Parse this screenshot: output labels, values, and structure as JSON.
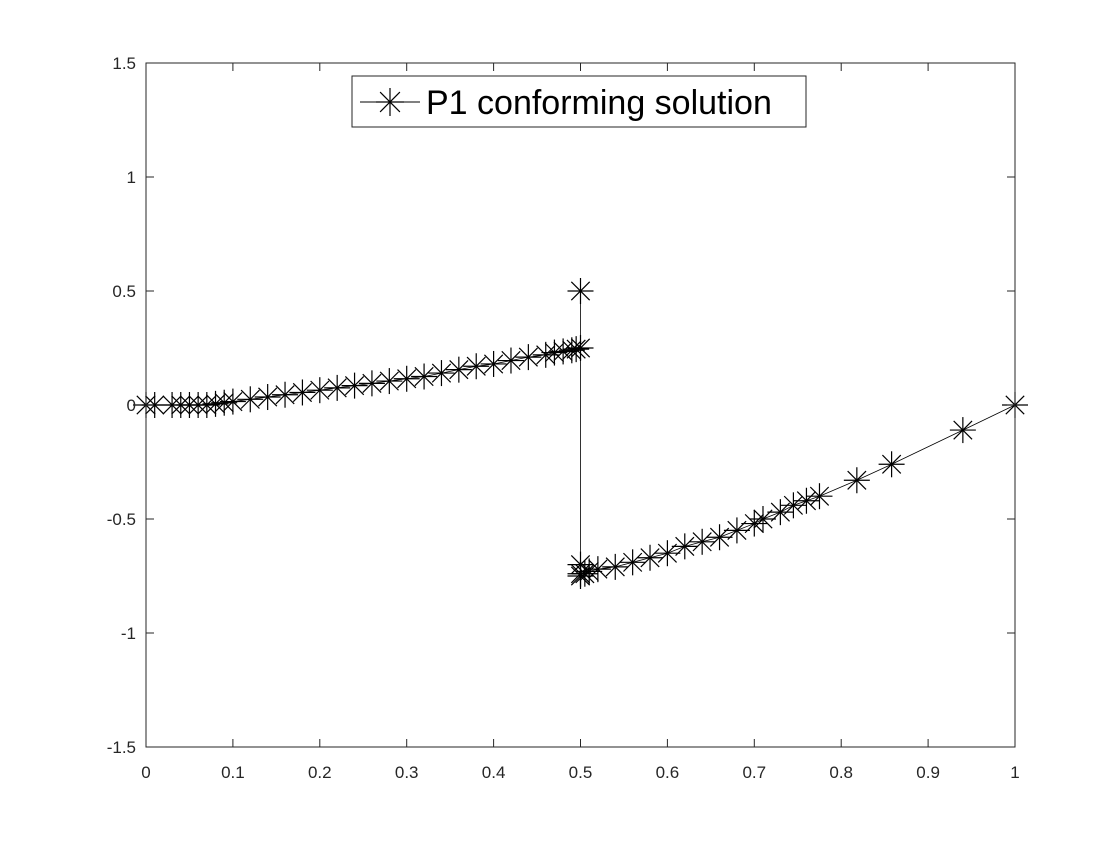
{
  "chart_data": {
    "type": "line",
    "title": "",
    "xlabel": "",
    "ylabel": "",
    "xlim": [
      0,
      1
    ],
    "ylim": [
      -1.5,
      1.5
    ],
    "x_ticks": [
      "0",
      "0.1",
      "0.2",
      "0.3",
      "0.4",
      "0.5",
      "0.6",
      "0.7",
      "0.8",
      "0.9",
      "1"
    ],
    "y_ticks": [
      "-1.5",
      "-1",
      "-0.5",
      "0",
      "0.5",
      "1",
      "1.5"
    ],
    "grid": false,
    "legend_position": "top-center",
    "series": [
      {
        "name": "P1 conforming solution",
        "color": "#000000",
        "marker": "asterisk",
        "x": [
          0,
          0.01,
          0.03,
          0.04,
          0.05,
          0.06,
          0.07,
          0.08,
          0.09,
          0.1,
          0.12,
          0.14,
          0.16,
          0.18,
          0.2,
          0.22,
          0.24,
          0.26,
          0.28,
          0.3,
          0.32,
          0.34,
          0.36,
          0.38,
          0.4,
          0.42,
          0.44,
          0.46,
          0.47,
          0.48,
          0.49,
          0.495,
          0.5,
          0.5,
          0.5,
          0.5,
          0.5,
          0.505,
          0.51,
          0.52,
          0.54,
          0.56,
          0.58,
          0.6,
          0.62,
          0.64,
          0.66,
          0.68,
          0.7,
          0.71,
          0.73,
          0.745,
          0.76,
          0.775,
          0.818,
          0.858,
          0.94,
          1
        ],
        "y": [
          0,
          0,
          0,
          0,
          0,
          0,
          0,
          0.005,
          0.01,
          0.015,
          0.025,
          0.035,
          0.045,
          0.055,
          0.065,
          0.075,
          0.085,
          0.095,
          0.105,
          0.115,
          0.125,
          0.14,
          0.155,
          0.17,
          0.18,
          0.195,
          0.21,
          0.22,
          0.23,
          0.235,
          0.24,
          0.245,
          0.25,
          0.5,
          -0.7,
          -0.75,
          -0.74,
          -0.74,
          -0.73,
          -0.72,
          -0.71,
          -0.69,
          -0.67,
          -0.65,
          -0.62,
          -0.6,
          -0.58,
          -0.55,
          -0.52,
          -0.5,
          -0.47,
          -0.44,
          -0.42,
          -0.4,
          -0.33,
          -0.26,
          -0.11,
          0
        ]
      }
    ]
  }
}
